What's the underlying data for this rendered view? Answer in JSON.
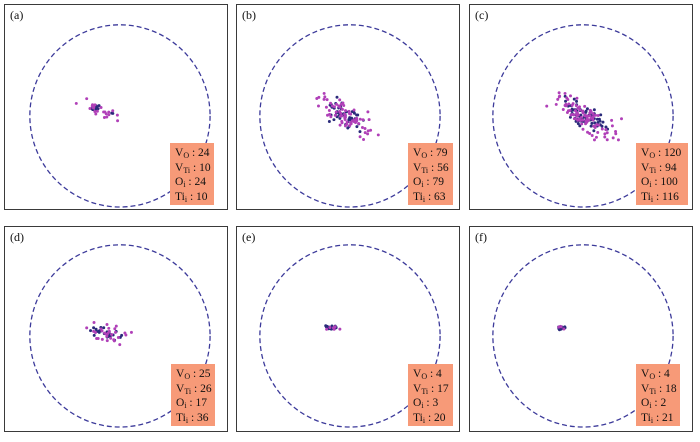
{
  "panels": [
    {
      "label": "(a)",
      "vo": "24",
      "vti": "10",
      "o": "24",
      "ti": "10"
    },
    {
      "label": "(b)",
      "vo": "79",
      "vti": "56",
      "o": "79",
      "ti": "63"
    },
    {
      "label": "(c)",
      "vo": "120",
      "vti": "94",
      "o": "100",
      "ti": "116"
    },
    {
      "label": "(d)",
      "vo": "25",
      "vti": "26",
      "o": "17",
      "ti": "36"
    },
    {
      "label": "(e)",
      "vo": "4",
      "vti": "17",
      "o": "3",
      "ti": "20"
    },
    {
      "label": "(f)",
      "vo": "4",
      "vti": "18",
      "o": "2",
      "ti": "21"
    }
  ],
  "legend_text": {
    "v": "V",
    "sub_o": "O",
    "sub_ti": "Ti",
    "o": "O",
    "ti": "Ti",
    "i": "i",
    "sep": " : "
  },
  "colors": {
    "circle": "#3c3a9a",
    "vacancy_dots": "#2a2a7a",
    "interstitial_dots": "#b040b8",
    "legend_bg": "#f79a78",
    "frame": "#3a3a3a"
  }
}
